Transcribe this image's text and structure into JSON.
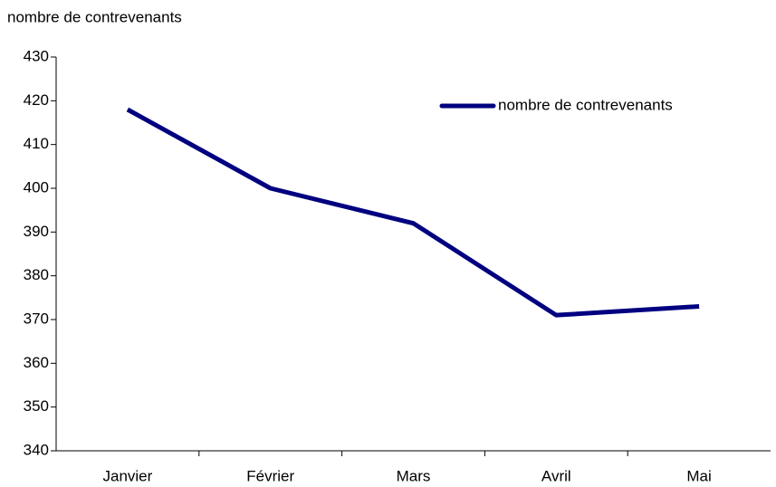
{
  "chart_data": {
    "type": "line",
    "y_label": "nombre de contrevenants",
    "categories": [
      "Janvier",
      "Février",
      "Mars",
      "Avril",
      "Mai"
    ],
    "series": [
      {
        "name": "nombre de contrevenants",
        "color": "#000080",
        "values": [
          418,
          400,
          392,
          371,
          373
        ]
      }
    ],
    "ylim": [
      340,
      430
    ],
    "yticks": [
      340,
      350,
      360,
      370,
      380,
      390,
      400,
      410,
      420,
      430
    ],
    "grid": false,
    "legend": "upper right"
  }
}
